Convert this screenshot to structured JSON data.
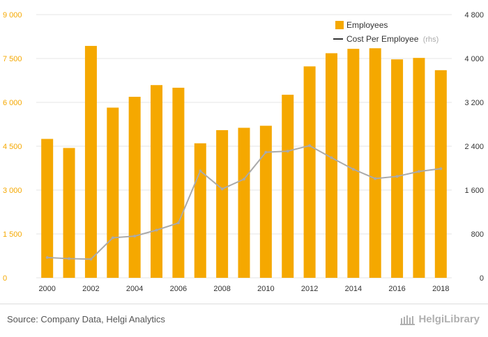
{
  "chart_data": {
    "type": "bar",
    "categories": [
      "2000",
      "2001",
      "2002",
      "2003",
      "2004",
      "2005",
      "2006",
      "2007",
      "2008",
      "2009",
      "2010",
      "2011",
      "2012",
      "2013",
      "2014",
      "2015",
      "2016",
      "2017",
      "2018"
    ],
    "series": [
      {
        "name": "Employees",
        "type": "bar",
        "axis": "left",
        "color": "#f5a800",
        "values": [
          4750,
          4440,
          7930,
          5820,
          6190,
          6590,
          6500,
          4600,
          5050,
          5130,
          5200,
          6260,
          7230,
          7680,
          7830,
          7850,
          7470,
          7520,
          7100
        ]
      },
      {
        "name": "Cost Per Employee",
        "name_suffix": "(rhs)",
        "type": "line",
        "axis": "right",
        "color": "#aaaaaa",
        "values": [
          370,
          350,
          340,
          730,
          760,
          870,
          1000,
          1950,
          1620,
          1800,
          2290,
          2310,
          2410,
          2190,
          1980,
          1810,
          1850,
          1940,
          1990
        ]
      }
    ],
    "y_left": {
      "min": 0,
      "max": 9000,
      "ticks": [
        0,
        1500,
        3000,
        4500,
        6000,
        7500,
        9000
      ],
      "tick_labels": [
        "0",
        "1 500",
        "3 000",
        "4 500",
        "6 000",
        "7 500",
        "9 000"
      ]
    },
    "y_right": {
      "min": 0,
      "max": 4800,
      "ticks": [
        0,
        800,
        1600,
        2400,
        3200,
        4000,
        4800
      ],
      "tick_labels": [
        "0",
        "800",
        "1 600",
        "2 400",
        "3 200",
        "4 000",
        "4 800"
      ]
    },
    "x_tick_labels": [
      "2000",
      "2002",
      "2004",
      "2006",
      "2008",
      "2010",
      "2012",
      "2014",
      "2016",
      "2018"
    ],
    "legend_position": "top-right",
    "grid": true
  },
  "footer": {
    "source": "Source: Company Data, Helgi Analytics",
    "brand": "HelgiLibrary"
  }
}
